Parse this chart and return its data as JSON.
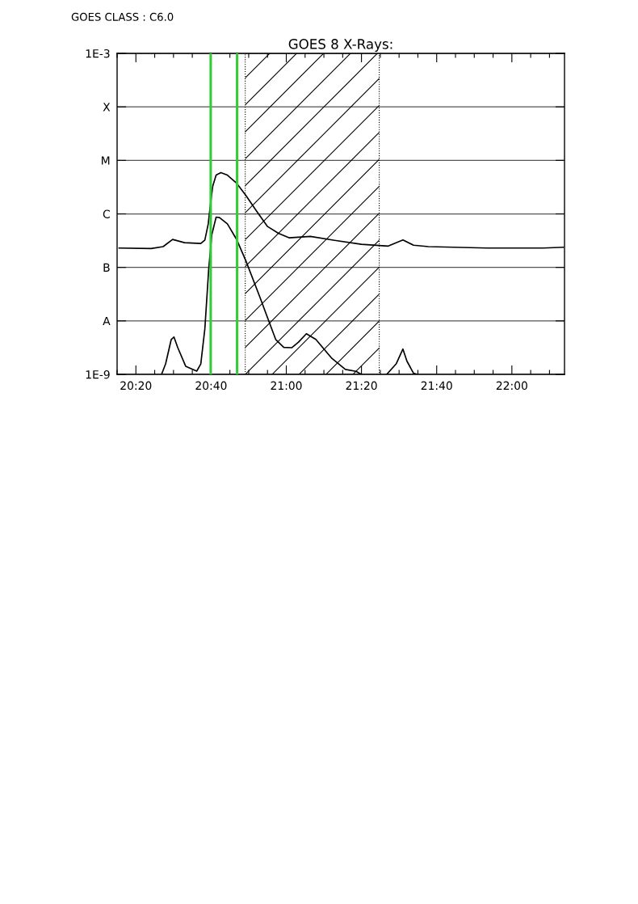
{
  "chart_data": {
    "type": "line",
    "title": "GOES 8 X-Rays:",
    "annotations": [
      "GOES CLASS : C6.0"
    ],
    "log": "y",
    "grid": "y",
    "marker": "none",
    "line_style": "solid",
    "xlim": [
      20.25,
      22.2333
    ],
    "ylim": [
      1e-09,
      0.001
    ],
    "xticks": [
      {
        "value": 20.25,
        "label": null
      },
      {
        "value": 20.3333,
        "label": "20:20"
      },
      {
        "value": 20.4167,
        "label": null
      },
      {
        "value": 20.5,
        "label": null
      },
      {
        "value": 20.5833,
        "label": null
      },
      {
        "value": 20.6667,
        "label": "20:40"
      },
      {
        "value": 20.75,
        "label": null
      },
      {
        "value": 20.8333,
        "label": null
      },
      {
        "value": 20.9167,
        "label": null
      },
      {
        "value": 21.0,
        "label": "21:00"
      },
      {
        "value": 21.0833,
        "label": null
      },
      {
        "value": 21.1667,
        "label": null
      },
      {
        "value": 21.25,
        "label": null
      },
      {
        "value": 21.3333,
        "label": "21:20"
      },
      {
        "value": 21.4167,
        "label": null
      },
      {
        "value": 21.5,
        "label": null
      },
      {
        "value": 21.5833,
        "label": null
      },
      {
        "value": 21.6667,
        "label": "21:40"
      },
      {
        "value": 21.75,
        "label": null
      },
      {
        "value": 21.8333,
        "label": null
      },
      {
        "value": 21.9167,
        "label": null
      },
      {
        "value": 22.0,
        "label": "22:00"
      },
      {
        "value": 22.0833,
        "label": null
      },
      {
        "value": 22.1667,
        "label": null
      }
    ],
    "yticks": [
      {
        "value": 1e-09,
        "label": "1E-9"
      },
      {
        "value": 1e-08,
        "label": "A"
      },
      {
        "value": 1e-07,
        "label": "B"
      },
      {
        "value": 1e-06,
        "label": "C"
      },
      {
        "value": 1e-05,
        "label": "M"
      },
      {
        "value": 0.0001,
        "label": "X"
      },
      {
        "value": 0.001,
        "label": "1E-3"
      }
    ],
    "ref_lines": [
      {
        "axis": "x",
        "value": 20.665,
        "color": "#33cc33",
        "line_style": "solid"
      },
      {
        "axis": "x",
        "value": 20.782,
        "color": "#33cc33",
        "line_style": "solid"
      }
    ],
    "bands": [
      {
        "axis": "x",
        "from": 20.818,
        "to": 21.412,
        "color": "#000000"
      }
    ],
    "series": [
      {
        "color": "#000000",
        "x": [
          20.259,
          20.401,
          20.454,
          20.496,
          20.549,
          20.621,
          20.639,
          20.654,
          20.662,
          20.674,
          20.689,
          20.71,
          20.739,
          20.781,
          20.821,
          20.87,
          20.917,
          20.965,
          21.012,
          21.107,
          21.214,
          21.333,
          21.452,
          21.517,
          21.564,
          21.63,
          21.89,
          22.139,
          22.228
        ],
        "values": [
          2.3e-07,
          2.25e-07,
          2.44e-07,
          3.33e-07,
          2.9e-07,
          2.8e-07,
          3.25e-07,
          6.5e-07,
          1.31e-06,
          3.3e-06,
          5.3e-06,
          5.9e-06,
          5.3e-06,
          3.7e-06,
          2.2e-06,
          1.1e-06,
          5.8e-07,
          4.35e-07,
          3.57e-07,
          3.8e-07,
          3.2e-07,
          2.7e-07,
          2.5e-07,
          3.25e-07,
          2.6e-07,
          2.44e-07,
          2.3e-07,
          2.3e-07,
          2.38e-07
        ]
      },
      {
        "color": "#000000",
        "x": [
          20.447,
          20.465,
          20.49,
          20.502,
          20.519,
          20.554,
          20.603,
          20.621,
          20.639,
          20.656,
          20.67,
          20.689,
          20.704,
          20.739,
          20.781,
          20.822,
          20.882,
          20.917,
          20.953,
          20.989,
          21.024,
          21.054,
          21.089,
          21.131,
          21.202,
          21.262,
          21.309,
          21.333,
          21.39,
          21.445,
          21.487,
          21.517,
          21.535,
          21.564,
          21.581
        ],
        "values": [
          1e-09,
          1.57e-09,
          4.5e-09,
          5e-09,
          3.15e-09,
          1.42e-09,
          1.15e-09,
          1.57e-09,
          7.1e-09,
          9.2e-08,
          4.1e-07,
          8.7e-07,
          8.5e-07,
          6.5e-07,
          3.25e-07,
          1.29e-07,
          2.85e-08,
          1.14e-08,
          4.5e-09,
          3.2e-09,
          3.15e-09,
          4e-09,
          5.75e-09,
          4.5e-09,
          1.99e-09,
          1.24e-09,
          1.14e-09,
          1e-09,
          null,
          1e-09,
          1.57e-09,
          2.97e-09,
          1.76e-09,
          1.05e-09,
          1e-09
        ]
      }
    ]
  }
}
